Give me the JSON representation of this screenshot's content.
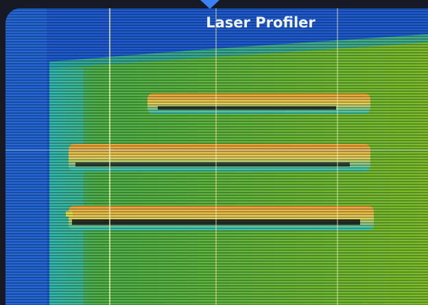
{
  "title": "Laser Profiler"
}
